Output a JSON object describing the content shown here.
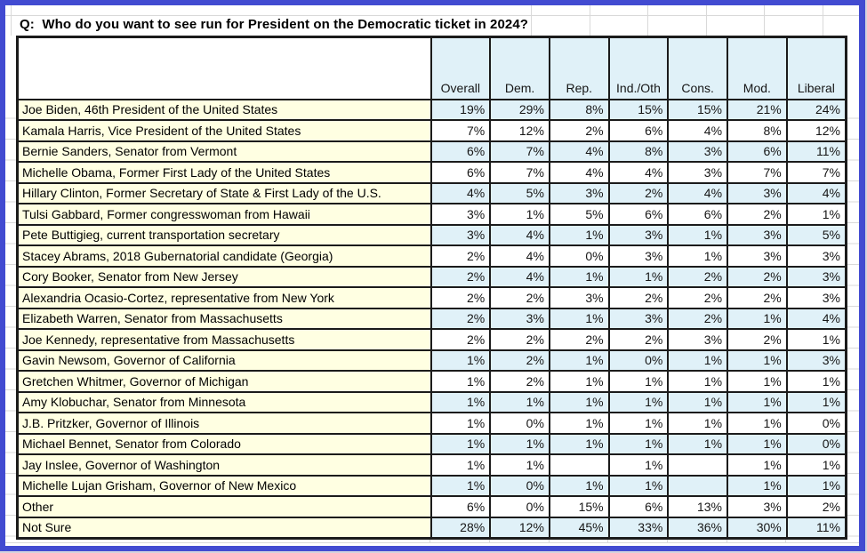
{
  "title": "Q:  Who do you want to see run for President on the Democratic ticket in 2024?",
  "table": {
    "columns": [
      "",
      "Overall",
      "Dem.",
      "Rep.",
      "Ind./Oth",
      "Cons.",
      "Mod.",
      "Liberal"
    ],
    "rows": [
      {
        "label": "Joe Biden, 46th President of the United States",
        "values": [
          "19%",
          "29%",
          "8%",
          "15%",
          "15%",
          "21%",
          "24%"
        ]
      },
      {
        "label": "Kamala Harris, Vice President of the United States",
        "values": [
          "7%",
          "12%",
          "2%",
          "6%",
          "4%",
          "8%",
          "12%"
        ]
      },
      {
        "label": "Bernie Sanders, Senator from Vermont",
        "values": [
          "6%",
          "7%",
          "4%",
          "8%",
          "3%",
          "6%",
          "11%"
        ]
      },
      {
        "label": "Michelle Obama, Former First Lady of the United States",
        "values": [
          "6%",
          "7%",
          "4%",
          "4%",
          "3%",
          "7%",
          "7%"
        ]
      },
      {
        "label": "Hillary Clinton, Former Secretary of State & First Lady of the U.S.",
        "values": [
          "4%",
          "5%",
          "3%",
          "2%",
          "4%",
          "3%",
          "4%"
        ]
      },
      {
        "label": "Tulsi Gabbard, Former congresswoman from Hawaii",
        "values": [
          "3%",
          "1%",
          "5%",
          "6%",
          "6%",
          "2%",
          "1%"
        ]
      },
      {
        "label": "Pete Buttigieg, current transportation secretary",
        "values": [
          "3%",
          "4%",
          "1%",
          "3%",
          "1%",
          "3%",
          "5%"
        ]
      },
      {
        "label": "Stacey Abrams, 2018 Gubernatorial candidate (Georgia)",
        "values": [
          "2%",
          "4%",
          "0%",
          "3%",
          "1%",
          "3%",
          "3%"
        ]
      },
      {
        "label": "Cory Booker, Senator from New Jersey",
        "values": [
          "2%",
          "4%",
          "1%",
          "1%",
          "2%",
          "2%",
          "3%"
        ]
      },
      {
        "label": "Alexandria Ocasio-Cortez, representative from New York",
        "values": [
          "2%",
          "2%",
          "3%",
          "2%",
          "2%",
          "2%",
          "3%"
        ]
      },
      {
        "label": "Elizabeth Warren, Senator from Massachusetts",
        "values": [
          "2%",
          "3%",
          "1%",
          "3%",
          "2%",
          "1%",
          "4%"
        ]
      },
      {
        "label": "Joe Kennedy, representative from Massachusetts",
        "values": [
          "2%",
          "2%",
          "2%",
          "2%",
          "3%",
          "2%",
          "1%"
        ]
      },
      {
        "label": "Gavin Newsom, Governor of California",
        "values": [
          "1%",
          "2%",
          "1%",
          "0%",
          "1%",
          "1%",
          "3%"
        ]
      },
      {
        "label": "Gretchen Whitmer, Governor of Michigan",
        "values": [
          "1%",
          "2%",
          "1%",
          "1%",
          "1%",
          "1%",
          "1%"
        ]
      },
      {
        "label": "Amy Klobuchar, Senator from Minnesota",
        "values": [
          "1%",
          "1%",
          "1%",
          "1%",
          "1%",
          "1%",
          "1%"
        ]
      },
      {
        "label": "J.B. Pritzker, Governor of Illinois",
        "values": [
          "1%",
          "0%",
          "1%",
          "1%",
          "1%",
          "1%",
          "0%"
        ]
      },
      {
        "label": "Michael Bennet, Senator from Colorado",
        "values": [
          "1%",
          "1%",
          "1%",
          "1%",
          "1%",
          "1%",
          "0%"
        ]
      },
      {
        "label": "Jay Inslee, Governor of Washington",
        "values": [
          "1%",
          "1%",
          "",
          "1%",
          "",
          "1%",
          "1%"
        ]
      },
      {
        "label": "Michelle Lujan Grisham, Governor of New Mexico",
        "values": [
          "1%",
          "0%",
          "1%",
          "1%",
          "",
          "1%",
          "1%"
        ]
      },
      {
        "label": "Other",
        "values": [
          "6%",
          "0%",
          "15%",
          "6%",
          "13%",
          "3%",
          "2%"
        ]
      },
      {
        "label": "Not Sure",
        "values": [
          "28%",
          "12%",
          "45%",
          "33%",
          "36%",
          "30%",
          "11%"
        ]
      }
    ]
  },
  "colors": {
    "frame_border": "#424BD1",
    "row_tint": "#E0F1F8",
    "name_bg": "#FFFFE2",
    "grid_line": "#D9D9D9",
    "table_border": "#1B1B1B"
  }
}
